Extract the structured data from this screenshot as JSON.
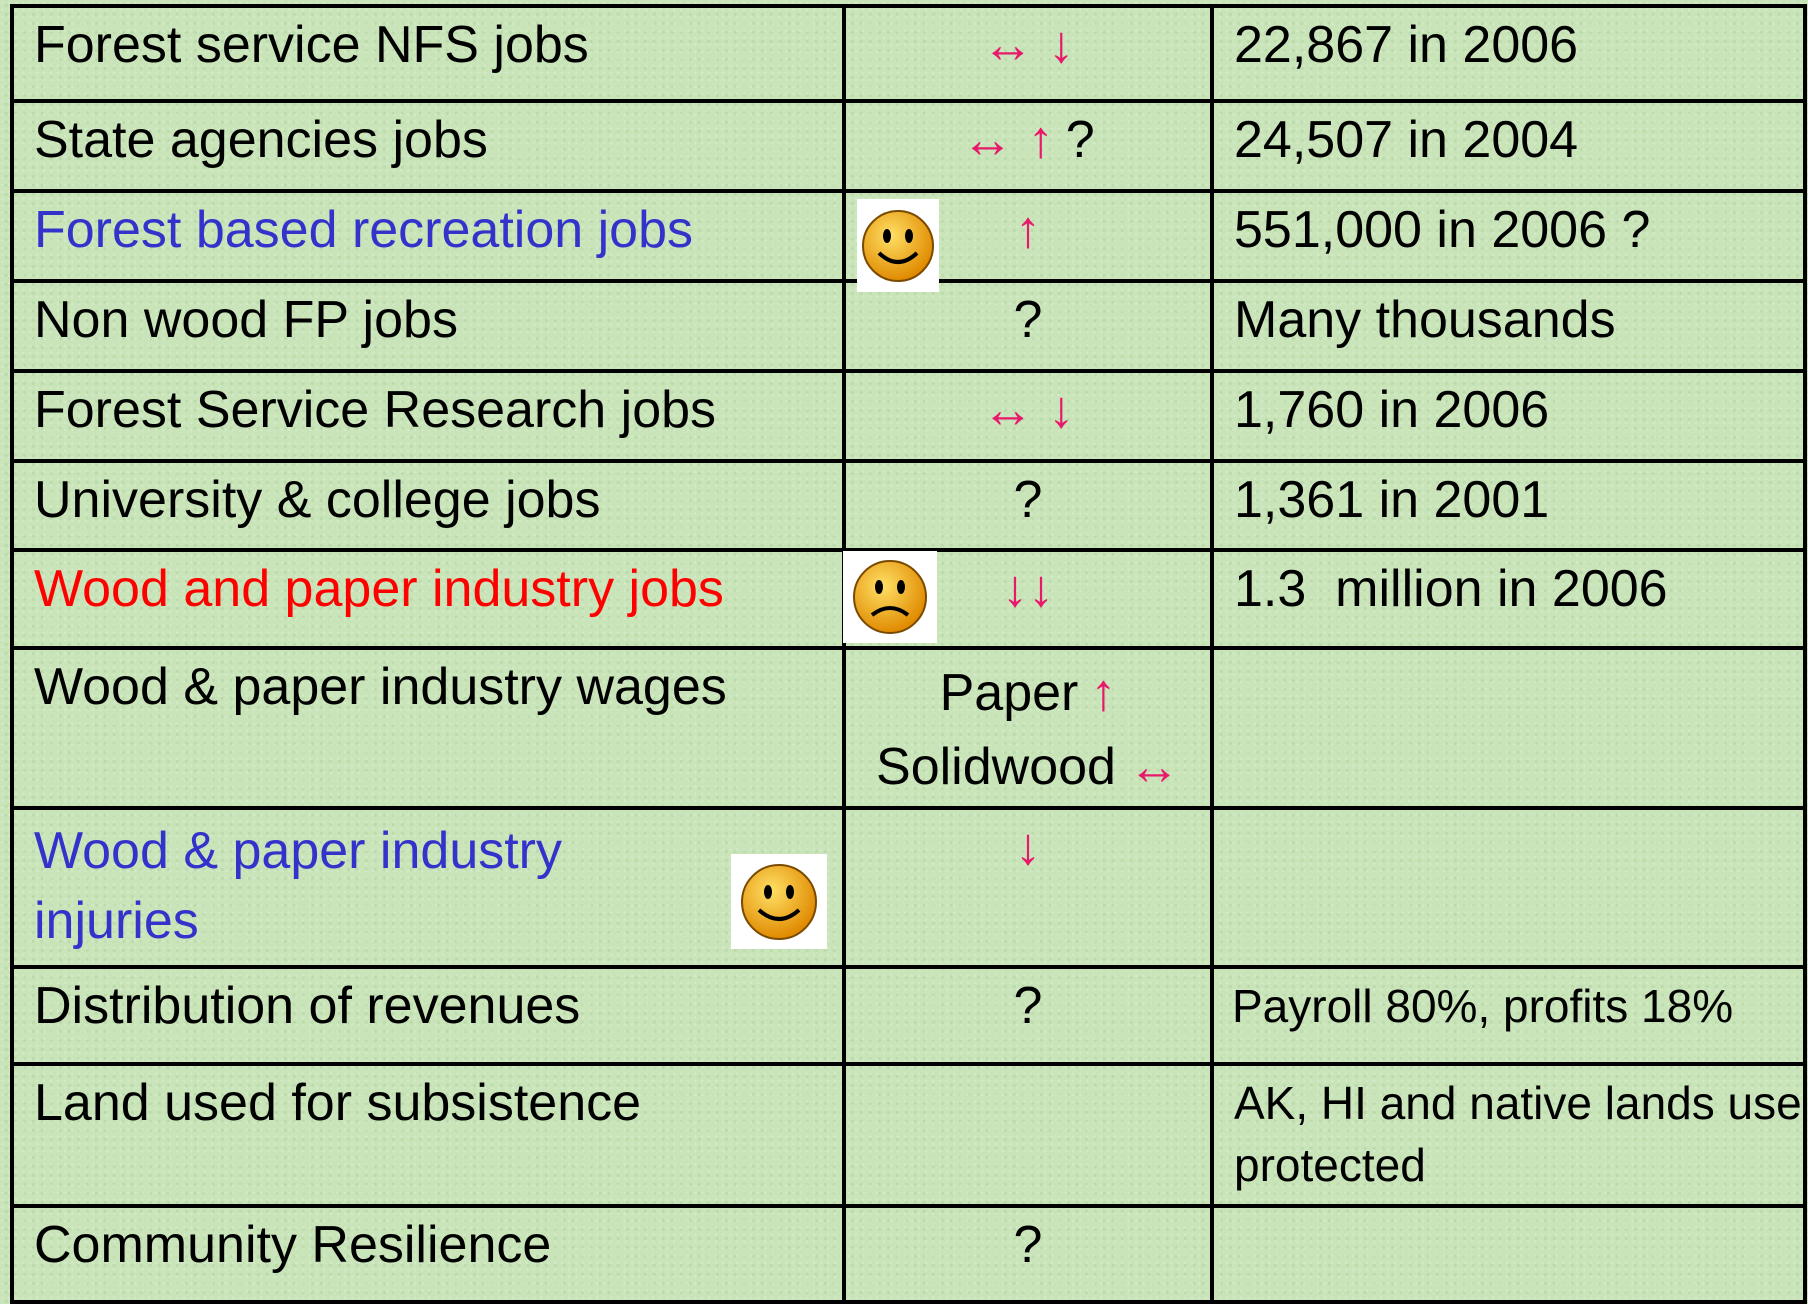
{
  "table": {
    "rows": [
      {
        "label": "Forest service NFS jobs",
        "label_color": "#000000",
        "trend": [
          [
            {
              "text": "↔ ↓",
              "color": "#e8186b"
            }
          ]
        ],
        "value": "22,867 in 2006"
      },
      {
        "label": "State agencies jobs",
        "label_color": "#000000",
        "trend": [
          [
            {
              "text": "↔ ↑",
              "color": "#e8186b"
            },
            {
              "text": "?",
              "color": "#000000"
            }
          ]
        ],
        "value": "24,507 in 2004"
      },
      {
        "label": "Forest based recreation jobs",
        "label_color": "#3333cc",
        "trend": [
          [
            {
              "text": "↑",
              "color": "#e8186b"
            }
          ]
        ],
        "value": "551,000 in 2006 ?"
      },
      {
        "label": "Non wood FP jobs",
        "label_color": "#000000",
        "trend": [
          [
            {
              "text": "?",
              "color": "#000000"
            }
          ]
        ],
        "value": "Many thousands"
      },
      {
        "label": "Forest Service Research jobs",
        "label_color": "#000000",
        "trend": [
          [
            {
              "text": "↔ ↓",
              "color": "#e8186b"
            }
          ]
        ],
        "value": "1,760 in 2006"
      },
      {
        "label": "University & college jobs",
        "label_color": "#000000",
        "trend": [
          [
            {
              "text": "?",
              "color": "#000000"
            }
          ]
        ],
        "value": "1,361 in 2001"
      },
      {
        "label": "Wood and paper industry jobs",
        "label_color": "#ff0000",
        "trend": [
          [
            {
              "text": "↓↓",
              "color": "#e8186b"
            }
          ]
        ],
        "value": "1.3  million in 2006"
      },
      {
        "label": "Wood & paper industry wages",
        "label_color": "#000000",
        "trend": [
          [
            {
              "text": "Paper",
              "color": "#000000"
            },
            {
              "text": "↑",
              "color": "#e8186b"
            }
          ],
          [
            {
              "text": "Solidwood",
              "color": "#000000"
            },
            {
              "text": "↔",
              "color": "#e8186b"
            }
          ]
        ]
      },
      {
        "label": "Wood & paper industry injuries",
        "label_color": "#3333cc",
        "trend": [
          [
            {
              "text": "↓",
              "color": "#e8186b"
            }
          ]
        ]
      },
      {
        "label": "Distribution of revenues",
        "label_color": "#000000",
        "trend": [
          [
            {
              "text": "?",
              "color": "#000000"
            }
          ]
        ],
        "value": "Payroll 80%, profits 18%"
      },
      {
        "label": "Land used for subsistence",
        "label_color": "#000000",
        "trend": [],
        "value": "AK, HI and native lands use protected"
      },
      {
        "label": "Community Resilience",
        "label_color": "#000000",
        "trend": [
          [
            {
              "text": "?",
              "color": "#000000"
            }
          ]
        ]
      }
    ]
  }
}
